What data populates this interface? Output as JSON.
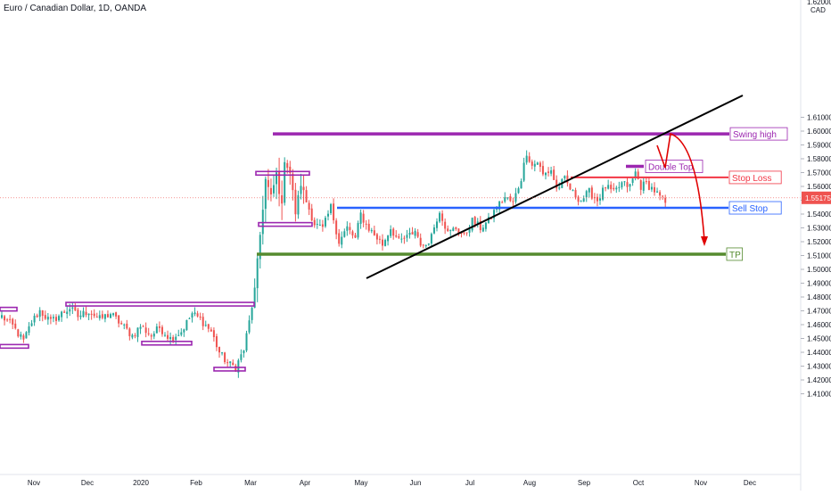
{
  "chart_data": {
    "type": "candlestick",
    "title": "Euro / Canadian Dollar, 1D, OANDA",
    "currency": "CAD",
    "last_price": 1.55175,
    "x_ticks": [
      "Nov",
      "Dec",
      "2020",
      "Feb",
      "Mar",
      "Apr",
      "May",
      "Jun",
      "Jul",
      "Aug",
      "Sep",
      "Oct",
      "Nov",
      "Dec"
    ],
    "y_ticks": [
      1.41,
      1.42,
      1.43,
      1.44,
      1.45,
      1.46,
      1.47,
      1.48,
      1.49,
      1.5,
      1.51,
      1.52,
      1.53,
      1.54,
      1.55,
      1.56,
      1.57,
      1.58,
      1.59,
      1.6,
      1.61
    ],
    "y_top_tick": 1.62,
    "ylim": [
      1.407,
      1.624
    ],
    "grid": false,
    "levels": [
      {
        "label": "Swing high",
        "price": 1.598,
        "color": "#9c27b0"
      },
      {
        "label": "Double Top",
        "price": 1.5745,
        "color": "#9c27b0"
      },
      {
        "label": "Stop Loss",
        "price": 1.5665,
        "color": "#f23645"
      },
      {
        "label": "Sell Stop",
        "price": 1.5445,
        "color": "#2962ff"
      },
      {
        "label": "TP",
        "price": 1.511,
        "color": "#558b2f"
      }
    ],
    "colors": {
      "up": "#26a69a",
      "down": "#ef5350",
      "support": "#9c27b0",
      "trendline": "#000000",
      "projection": "#e00000"
    }
  }
}
